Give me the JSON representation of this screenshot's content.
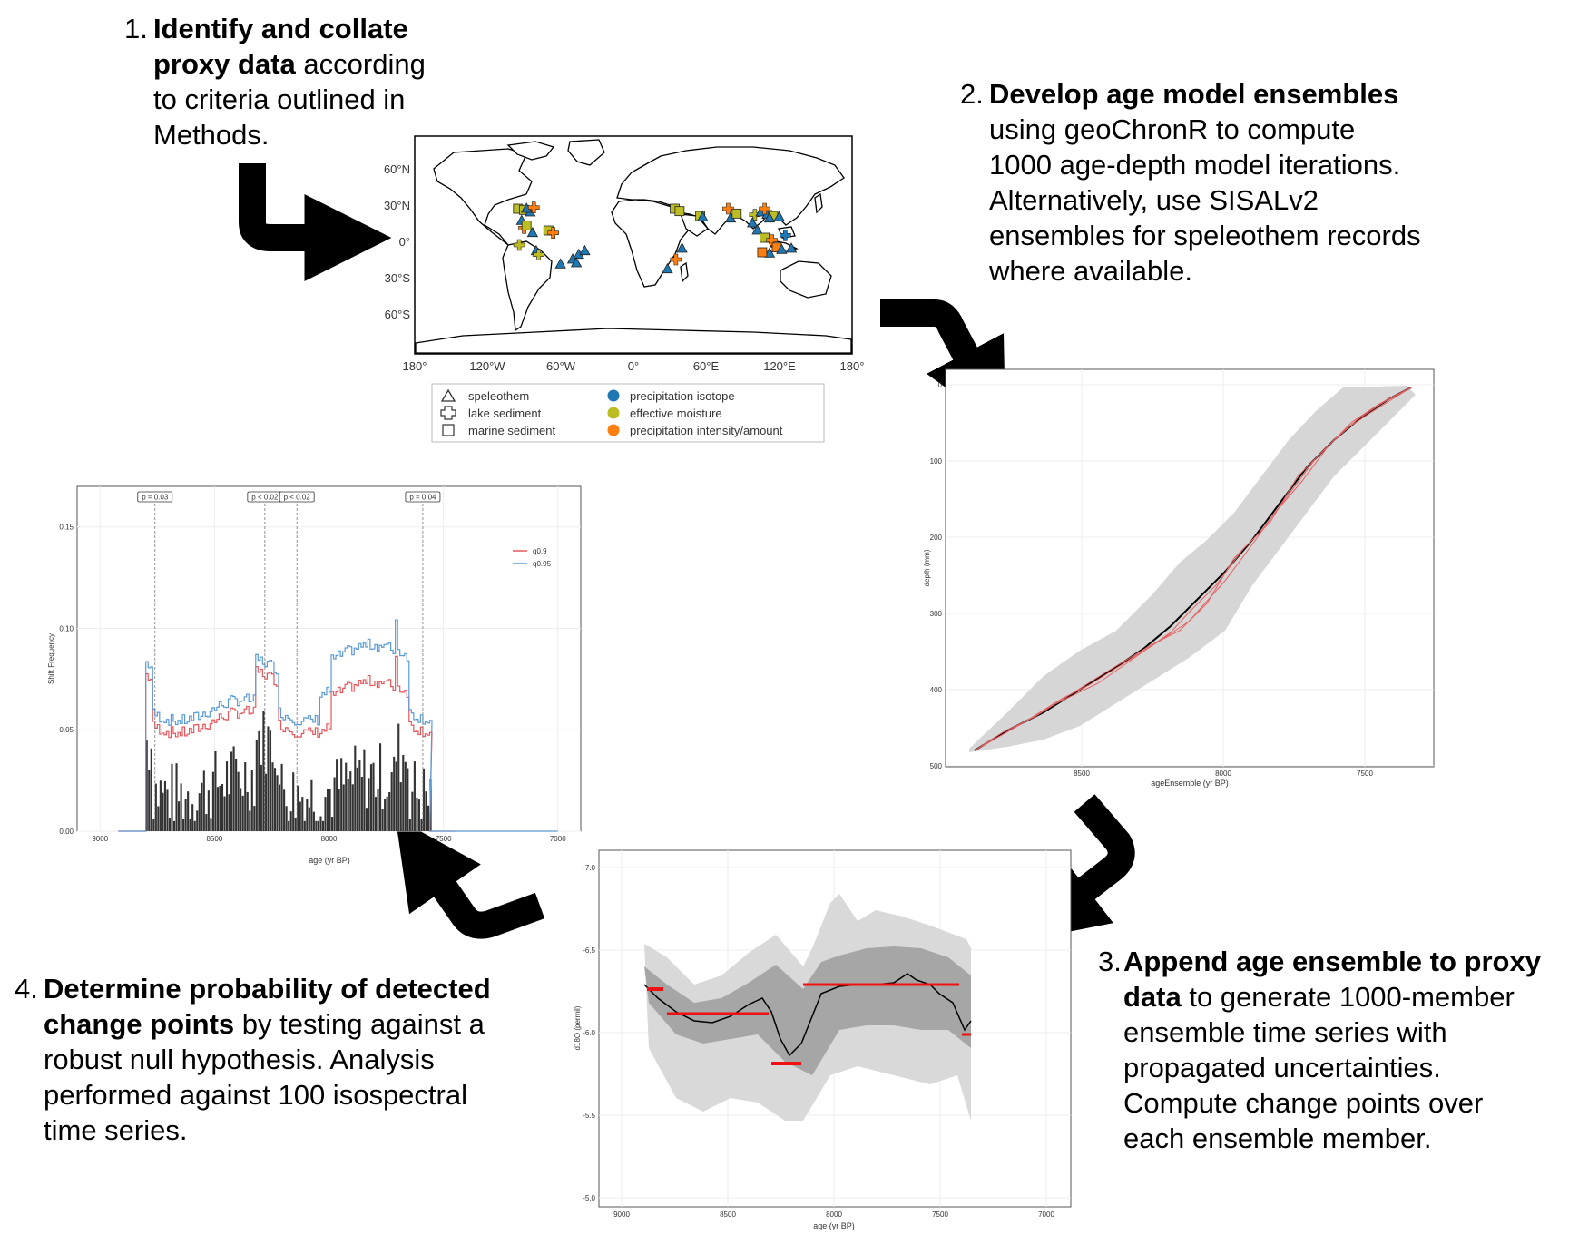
{
  "steps": [
    {
      "num": "1.",
      "bold": "Identify and collate proxy data",
      "rest": " according to criteria outlined in Methods."
    },
    {
      "num": "2.",
      "bold": "Develop age model ensembles",
      "rest": " using geoChronR to compute 1000 age-depth model iterations. Alternatively, use SISALv2 ensembles for speleothem records where available."
    },
    {
      "num": "3.",
      "bold": "Append age ensemble to proxy data",
      "rest": " to generate 1000-member ensemble time series with propagated uncertainties. Compute change points over each ensemble member."
    },
    {
      "num": "4.",
      "bold": "Determine probability of detected change points",
      "rest": " by testing against a robust null hypothesis. Analysis performed against 100 isospectral time series."
    }
  ],
  "step_lines": [
    [
      "Identify and collate",
      "proxy data according",
      "to criteria outlined in",
      "Methods."
    ],
    [
      "Develop age model ensembles",
      "using geoChronR to compute",
      "1000 age-depth model iterations.",
      "Alternatively, use SISALv2",
      "ensembles for speleothem records",
      "where available."
    ],
    [
      "Append age ensemble to proxy",
      "data to generate 1000-member",
      "ensemble time series with",
      "propagated uncertainties.",
      "Compute change points over",
      "each ensemble member."
    ],
    [
      "Determine probability of detected",
      "change points by testing against a",
      "robust null hypothesis. Analysis",
      "performed against 100 isospectral",
      "time series."
    ]
  ],
  "map": {
    "lat_labels": [
      "60°N",
      "30°N",
      "0°",
      "30°S",
      "60°S"
    ],
    "lon_labels": [
      "180°",
      "120°W",
      "60°W",
      "0°",
      "60°E",
      "120°E",
      "180°"
    ],
    "legend": {
      "shapes": [
        "speleothem",
        "lake sediment",
        "marine sediment"
      ],
      "colors": [
        {
          "label": "precipitation isotope",
          "color": "#1f77b4"
        },
        {
          "label": "effective moisture",
          "color": "#bcbd22"
        },
        {
          "label": "precipitation intensity/amount",
          "color": "#ff7f0e"
        }
      ]
    },
    "sites": [
      {
        "lon": -95,
        "lat": 30,
        "shape": "square",
        "color": "#bcbd22"
      },
      {
        "lon": -90,
        "lat": 29,
        "shape": "square",
        "color": "#bcbd22"
      },
      {
        "lon": -85,
        "lat": 27,
        "shape": "triangle",
        "color": "#1f77b4"
      },
      {
        "lon": -88,
        "lat": 30,
        "shape": "triangle",
        "color": "#1f77b4"
      },
      {
        "lon": -82,
        "lat": 31,
        "shape": "plus",
        "color": "#ff7f0e"
      },
      {
        "lon": -92,
        "lat": 20,
        "shape": "triangle",
        "color": "#1f77b4"
      },
      {
        "lon": -90,
        "lat": 14,
        "shape": "plus",
        "color": "#ff7f0e"
      },
      {
        "lon": -88,
        "lat": 16,
        "shape": "square",
        "color": "#bcbd22"
      },
      {
        "lon": -83,
        "lat": 10,
        "shape": "triangle",
        "color": "#1f77b4"
      },
      {
        "lon": -70,
        "lat": 12,
        "shape": "square",
        "color": "#bcbd22"
      },
      {
        "lon": -66,
        "lat": 10,
        "shape": "plus",
        "color": "#ff7f0e"
      },
      {
        "lon": -94,
        "lat": 0,
        "shape": "plus",
        "color": "#bcbd22"
      },
      {
        "lon": -80,
        "lat": -5,
        "shape": "triangle",
        "color": "#1f77b4"
      },
      {
        "lon": -78,
        "lat": -8,
        "shape": "plus",
        "color": "#bcbd22"
      },
      {
        "lon": -60,
        "lat": -16,
        "shape": "triangle",
        "color": "#1f77b4"
      },
      {
        "lon": -50,
        "lat": -12,
        "shape": "triangle",
        "color": "#1f77b4"
      },
      {
        "lon": -45,
        "lat": -8,
        "shape": "triangle",
        "color": "#1f77b4"
      },
      {
        "lon": -40,
        "lat": -5,
        "shape": "triangle",
        "color": "#1f77b4"
      },
      {
        "lon": -47,
        "lat": -15,
        "shape": "triangle",
        "color": "#1f77b4"
      },
      {
        "lon": 34,
        "lat": 30,
        "shape": "square",
        "color": "#bcbd22"
      },
      {
        "lon": 38,
        "lat": 28,
        "shape": "square",
        "color": "#bcbd22"
      },
      {
        "lon": 55,
        "lat": 24,
        "shape": "square",
        "color": "#bcbd22"
      },
      {
        "lon": 57,
        "lat": 23,
        "shape": "triangle",
        "color": "#1f77b4"
      },
      {
        "lon": 40,
        "lat": -3,
        "shape": "triangle",
        "color": "#1f77b4"
      },
      {
        "lon": 35,
        "lat": -12,
        "shape": "plus",
        "color": "#ff7f0e"
      },
      {
        "lon": 28,
        "lat": -20,
        "shape": "triangle",
        "color": "#1f77b4"
      },
      {
        "lon": 78,
        "lat": 30,
        "shape": "plus",
        "color": "#ff7f0e"
      },
      {
        "lon": 80,
        "lat": 22,
        "shape": "triangle",
        "color": "#1f77b4"
      },
      {
        "lon": 85,
        "lat": 26,
        "shape": "square",
        "color": "#bcbd22"
      },
      {
        "lon": 100,
        "lat": 25,
        "shape": "plus",
        "color": "#bcbd22"
      },
      {
        "lon": 105,
        "lat": 27,
        "shape": "triangle",
        "color": "#1f77b4"
      },
      {
        "lon": 110,
        "lat": 25,
        "shape": "triangle",
        "color": "#1f77b4"
      },
      {
        "lon": 115,
        "lat": 24,
        "shape": "square",
        "color": "#bcbd22"
      },
      {
        "lon": 108,
        "lat": 30,
        "shape": "plus",
        "color": "#ff7f0e"
      },
      {
        "lon": 120,
        "lat": 23,
        "shape": "triangle",
        "color": "#1f77b4"
      },
      {
        "lon": 112,
        "lat": 22,
        "shape": "triangle",
        "color": "#1f77b4"
      },
      {
        "lon": 98,
        "lat": 18,
        "shape": "triangle",
        "color": "#1f77b4"
      },
      {
        "lon": 102,
        "lat": 12,
        "shape": "triangle",
        "color": "#1f77b4"
      },
      {
        "lon": 108,
        "lat": 6,
        "shape": "square",
        "color": "#bcbd22"
      },
      {
        "lon": 114,
        "lat": 4,
        "shape": "plus",
        "color": "#ff7f0e"
      },
      {
        "lon": 125,
        "lat": 8,
        "shape": "plus",
        "color": "#1f77b4"
      },
      {
        "lon": 118,
        "lat": -2,
        "shape": "square",
        "color": "#ff7f0e"
      },
      {
        "lon": 122,
        "lat": -4,
        "shape": "triangle",
        "color": "#1f77b4"
      },
      {
        "lon": 112,
        "lat": -7,
        "shape": "triangle",
        "color": "#1f77b4"
      },
      {
        "lon": 130,
        "lat": -3,
        "shape": "triangle",
        "color": "#1f77b4"
      },
      {
        "lon": 106,
        "lat": -6,
        "shape": "square",
        "color": "#ff7f0e"
      }
    ]
  },
  "age_model": {
    "xlabel": "ageEnsemble (yr BP)",
    "ylabel": "depth (mm)",
    "xticks": [
      "8500",
      "8000",
      "7500"
    ],
    "yticks": [
      "0",
      "100",
      "200",
      "300",
      "400",
      "500"
    ]
  },
  "timeseries": {
    "xlabel": "age (yr BP)",
    "ylabel": "d18O (permil)",
    "xticks": [
      "9000",
      "8500",
      "8000",
      "7500",
      "7000"
    ],
    "yticks": [
      "-7.0",
      "-6.5",
      "-6.0",
      "-5.5",
      "-5.0"
    ]
  },
  "chart_data": {
    "type": "bar",
    "xlabel": "age (yr BP)",
    "ylabel": "Shift Frequency",
    "xticks": [
      "9000",
      "8500",
      "8000",
      "7500",
      "7000"
    ],
    "yticks": [
      "0.00",
      "0.05",
      "0.10",
      "0.15"
    ],
    "xlim": [
      9100,
      6900
    ],
    "ylim": [
      0,
      0.17
    ],
    "legend": [
      {
        "name": "q0.9",
        "color": "#e8575c"
      },
      {
        "name": "q0.95",
        "color": "#5b9bd5"
      }
    ],
    "annotations": [
      {
        "age": 8760,
        "label": "p = 0.03"
      },
      {
        "age": 8280,
        "label": "p < 0.02"
      },
      {
        "age": 8140,
        "label": "p < 0.02"
      },
      {
        "age": 7590,
        "label": "p = 0.04"
      }
    ]
  }
}
